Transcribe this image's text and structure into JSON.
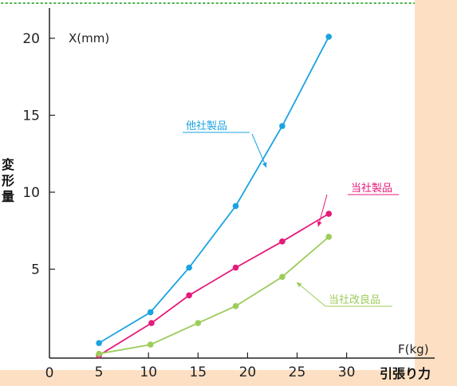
{
  "chart_data": {
    "type": "line",
    "ylabel_axis": "X(mm)",
    "xlabel_axis": "F(kg)",
    "ylabel_side": "変形量",
    "xlabel_side": "引張り力",
    "x_origin_label": "0",
    "xlim": [
      0,
      33
    ],
    "ylim": [
      -1,
      22
    ],
    "xticks": [
      5,
      10,
      15,
      20,
      25,
      30
    ],
    "yticks": [
      5,
      10,
      15,
      20
    ],
    "grid": false,
    "series": [
      {
        "name": "他社製品",
        "color": "#1aa3e0",
        "points": [
          [
            5,
            0.2
          ],
          [
            10.2,
            2.2
          ],
          [
            14.1,
            5.1
          ],
          [
            18.8,
            9.1
          ],
          [
            23.5,
            14.3
          ],
          [
            28.2,
            20.1
          ]
        ]
      },
      {
        "name": "当社製品",
        "color": "#e6197a",
        "points": [
          [
            5,
            -0.6
          ],
          [
            10.3,
            1.5
          ],
          [
            14.1,
            3.3
          ],
          [
            18.8,
            5.1
          ],
          [
            23.5,
            6.8
          ],
          [
            28.2,
            8.6
          ]
        ]
      },
      {
        "name": "当社改良品",
        "color": "#9ccc5a",
        "points": [
          [
            5,
            -0.5
          ],
          [
            10.2,
            0.1
          ],
          [
            15.0,
            1.5
          ],
          [
            18.8,
            2.6
          ],
          [
            23.5,
            4.5
          ],
          [
            28.2,
            7.1
          ]
        ]
      }
    ],
    "colors": {
      "background_band": "#fde0c4",
      "dotted_border": "#4ab04a",
      "axis": "#222222"
    }
  }
}
